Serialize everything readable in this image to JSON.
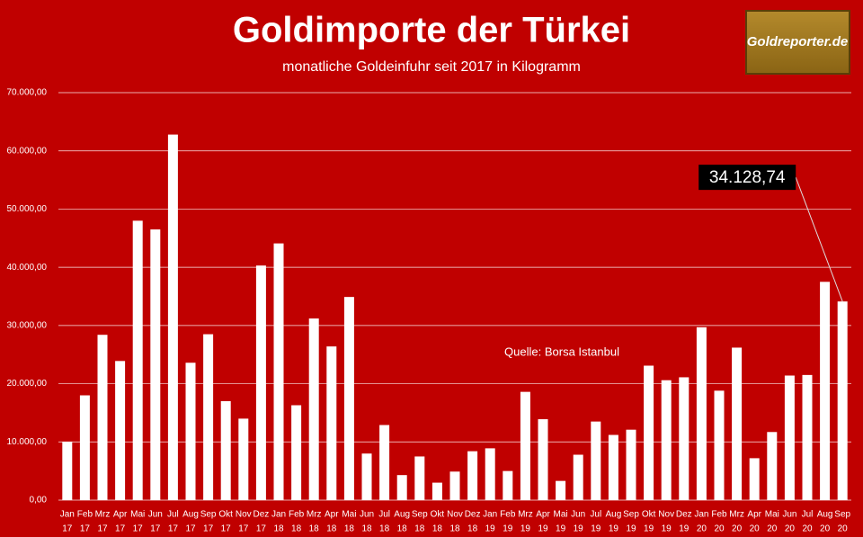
{
  "chart_data": {
    "type": "bar",
    "title": "Goldimporte der Türkei",
    "subtitle": "monatliche Goldeinfuhr seit 2017 in Kilogramm",
    "source": "Quelle: Borsa Istanbul",
    "logo": "Goldreporter.de",
    "categories": [
      [
        "Jan",
        "17"
      ],
      [
        "Feb",
        "17"
      ],
      [
        "Mrz",
        "17"
      ],
      [
        "Apr",
        "17"
      ],
      [
        "Mai",
        "17"
      ],
      [
        "Jun",
        "17"
      ],
      [
        "Jul",
        "17"
      ],
      [
        "Aug",
        "17"
      ],
      [
        "Sep",
        "17"
      ],
      [
        "Okt",
        "17"
      ],
      [
        "Nov",
        "17"
      ],
      [
        "Dez",
        "17"
      ],
      [
        "Jan",
        "18"
      ],
      [
        "Feb",
        "18"
      ],
      [
        "Mrz",
        "18"
      ],
      [
        "Apr",
        "18"
      ],
      [
        "Mai",
        "18"
      ],
      [
        "Jun",
        "18"
      ],
      [
        "Jul",
        "18"
      ],
      [
        "Aug",
        "18"
      ],
      [
        "Sep",
        "18"
      ],
      [
        "Okt",
        "18"
      ],
      [
        "Nov",
        "18"
      ],
      [
        "Dez",
        "18"
      ],
      [
        "Jan",
        "19"
      ],
      [
        "Feb",
        "19"
      ],
      [
        "Mrz",
        "19"
      ],
      [
        "Apr",
        "19"
      ],
      [
        "Mai",
        "19"
      ],
      [
        "Jun",
        "19"
      ],
      [
        "Jul",
        "19"
      ],
      [
        "Aug",
        "19"
      ],
      [
        "Sep",
        "19"
      ],
      [
        "Okt",
        "19"
      ],
      [
        "Nov",
        "19"
      ],
      [
        "Dez",
        "19"
      ],
      [
        "Jan",
        "20"
      ],
      [
        "Feb",
        "20"
      ],
      [
        "Mrz",
        "20"
      ],
      [
        "Apr",
        "20"
      ],
      [
        "Mai",
        "20"
      ],
      [
        "Jun",
        "20"
      ],
      [
        "Jul",
        "20"
      ],
      [
        "Aug",
        "20"
      ],
      [
        "Sep",
        "20"
      ]
    ],
    "values": [
      10000,
      18000,
      28400,
      23900,
      48000,
      46500,
      62800,
      23600,
      28500,
      17000,
      14000,
      40300,
      44100,
      16300,
      31200,
      26400,
      34900,
      8000,
      12900,
      4300,
      7500,
      3000,
      4900,
      8400,
      8900,
      5000,
      18600,
      13900,
      3300,
      7800,
      13500,
      11200,
      12100,
      23100,
      20600,
      21100,
      29700,
      18800,
      26200,
      7200,
      11700,
      21400,
      21500,
      37500,
      34128.74
    ],
    "value_labels": [
      null,
      null,
      null,
      null,
      null,
      null,
      null,
      null,
      null,
      null,
      null,
      null,
      null,
      null,
      null,
      null,
      null,
      null,
      null,
      null,
      null,
      null,
      null,
      null,
      null,
      null,
      null,
      null,
      null,
      null,
      null,
      null,
      null,
      null,
      null,
      null,
      null,
      null,
      null,
      null,
      null,
      null,
      null,
      null,
      "34.128,74"
    ],
    "color": "#ffffff",
    "ylim": [
      0,
      70000
    ],
    "yticks": [
      {
        "value": 0,
        "label": "0,00"
      },
      {
        "value": 10000,
        "label": "10.000,00"
      },
      {
        "value": 20000,
        "label": "20.000,00"
      },
      {
        "value": 30000,
        "label": "30.000,00"
      },
      {
        "value": 40000,
        "label": "40.000,00"
      },
      {
        "value": 50000,
        "label": "50.000,00"
      },
      {
        "value": 60000,
        "label": "60.000,00"
      },
      {
        "value": 70000,
        "label": "70.000,00"
      }
    ],
    "grid": true
  }
}
